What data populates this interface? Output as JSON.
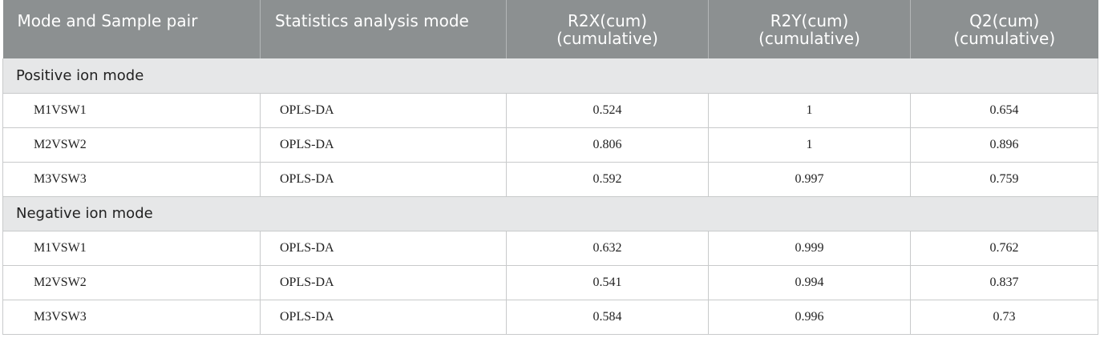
{
  "headers": [
    {
      "text": "Mode and Sample pair"
    },
    {
      "text": "Statistics analysis mode"
    },
    {
      "line1": "R2X(cum)",
      "line2": "(cumulative)"
    },
    {
      "line1": "R2Y(cum)",
      "line2": "(cumulative)"
    },
    {
      "line1": "Q2(cum)",
      "line2": "(cumulative)"
    }
  ],
  "groups": [
    {
      "label": "Positive ion mode",
      "rows": [
        {
          "pair": "M1VSW1",
          "mode": "OPLS-DA",
          "r2x": "0.524",
          "r2y": "1",
          "q2": "0.654"
        },
        {
          "pair": "M2VSW2",
          "mode": "OPLS-DA",
          "r2x": "0.806",
          "r2y": "1",
          "q2": "0.896"
        },
        {
          "pair": "M3VSW3",
          "mode": "OPLS-DA",
          "r2x": "0.592",
          "r2y": "0.997",
          "q2": "0.759"
        }
      ]
    },
    {
      "label": "Negative ion mode",
      "rows": [
        {
          "pair": "M1VSW1",
          "mode": "OPLS-DA",
          "r2x": "0.632",
          "r2y": "0.999",
          "q2": "0.762"
        },
        {
          "pair": "M2VSW2",
          "mode": "OPLS-DA",
          "r2x": "0.541",
          "r2y": "0.994",
          "q2": "0.837"
        },
        {
          "pair": "M3VSW3",
          "mode": "OPLS-DA",
          "r2x": "0.584",
          "r2y": "0.996",
          "q2": "0.73"
        }
      ]
    }
  ],
  "colors": {
    "header_bg": "#8c9091",
    "group_bg": "#e6e7e8",
    "border": "#c8cacb"
  }
}
